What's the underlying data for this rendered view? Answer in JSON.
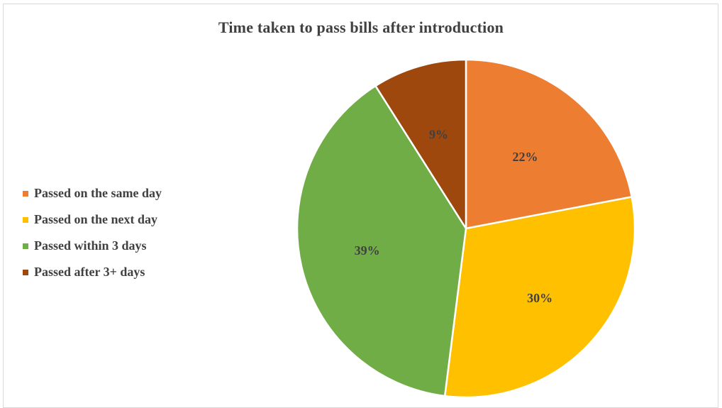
{
  "chart_data": {
    "type": "pie",
    "title": "Time taken to pass bills after introduction",
    "legend_position": "left",
    "categories": [
      "Passed on the same day",
      "Passed on the next day",
      "Passed within 3 days",
      "Passed after 3+ days"
    ],
    "values": [
      22,
      30,
      39,
      9
    ],
    "data_labels": [
      "22%",
      "30%",
      "39%",
      "9%"
    ],
    "colors": [
      "#ED7D31",
      "#FFC000",
      "#70AD47",
      "#9E480E"
    ]
  }
}
